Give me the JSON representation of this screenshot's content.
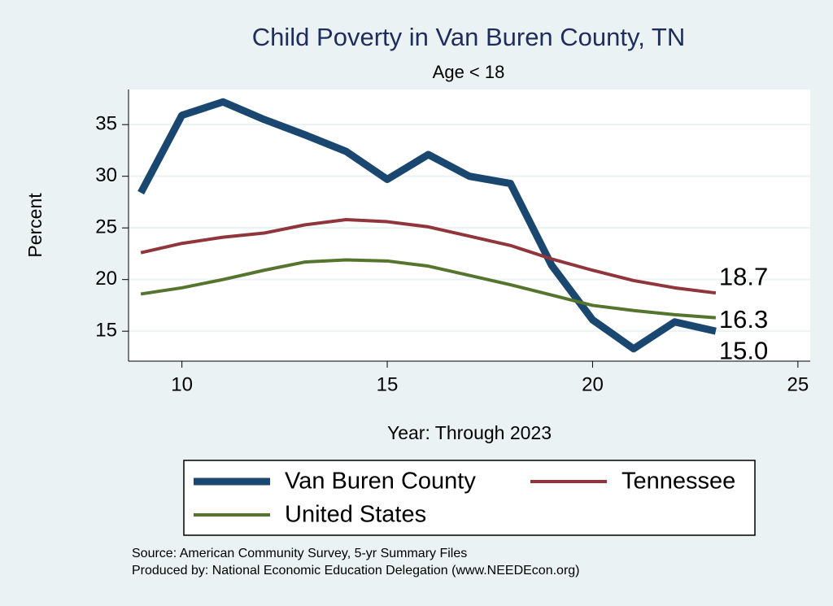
{
  "chart_data": {
    "type": "line",
    "title": "Child Poverty in Van Buren County, TN",
    "subtitle": "Age < 18",
    "x_label": "Year: Through 2023",
    "y_label": "Percent",
    "x": [
      9,
      10,
      11,
      12,
      13,
      14,
      15,
      16,
      17,
      18,
      19,
      20,
      21,
      22,
      23
    ],
    "series": [
      {
        "name": "Van Buren County",
        "color": "#1a476f",
        "values": [
          28.4,
          35.9,
          37.2,
          35.5,
          34.0,
          32.4,
          29.7,
          32.1,
          30.0,
          29.3,
          21.4,
          16.1,
          13.3,
          15.9,
          15.0
        ],
        "value_labels": [
          null,
          null,
          null,
          null,
          null,
          null,
          null,
          null,
          null,
          null,
          null,
          null,
          null,
          null,
          "15.0"
        ]
      },
      {
        "name": "Tennessee",
        "color": "#90353b",
        "values": [
          22.6,
          23.5,
          24.1,
          24.5,
          25.3,
          25.8,
          25.6,
          25.1,
          24.2,
          23.3,
          22.0,
          20.9,
          19.9,
          19.2,
          18.7
        ],
        "value_labels": [
          null,
          null,
          null,
          null,
          null,
          null,
          null,
          null,
          null,
          null,
          null,
          null,
          null,
          null,
          "18.7"
        ]
      },
      {
        "name": "United States",
        "color": "#55752f",
        "values": [
          18.6,
          19.2,
          20.0,
          20.9,
          21.7,
          21.9,
          21.8,
          21.3,
          20.4,
          19.5,
          18.5,
          17.5,
          17.0,
          16.6,
          16.3
        ],
        "value_labels": [
          null,
          null,
          null,
          null,
          null,
          null,
          null,
          null,
          null,
          null,
          null,
          null,
          null,
          null,
          "16.3"
        ]
      }
    ],
    "xlim": [
      8.7,
      25.3
    ],
    "xticks": [
      10,
      15,
      20,
      25
    ],
    "ylim": [
      12.1,
      38.4
    ],
    "yticks": [
      15,
      20,
      25,
      30,
      35
    ],
    "grid": true,
    "legend": "bottom",
    "notes": [
      "Source: American Community Survey, 5-yr Summary Files",
      "Produced by: National Economic Education Delegation (www.NEEDEcon.org)"
    ]
  }
}
